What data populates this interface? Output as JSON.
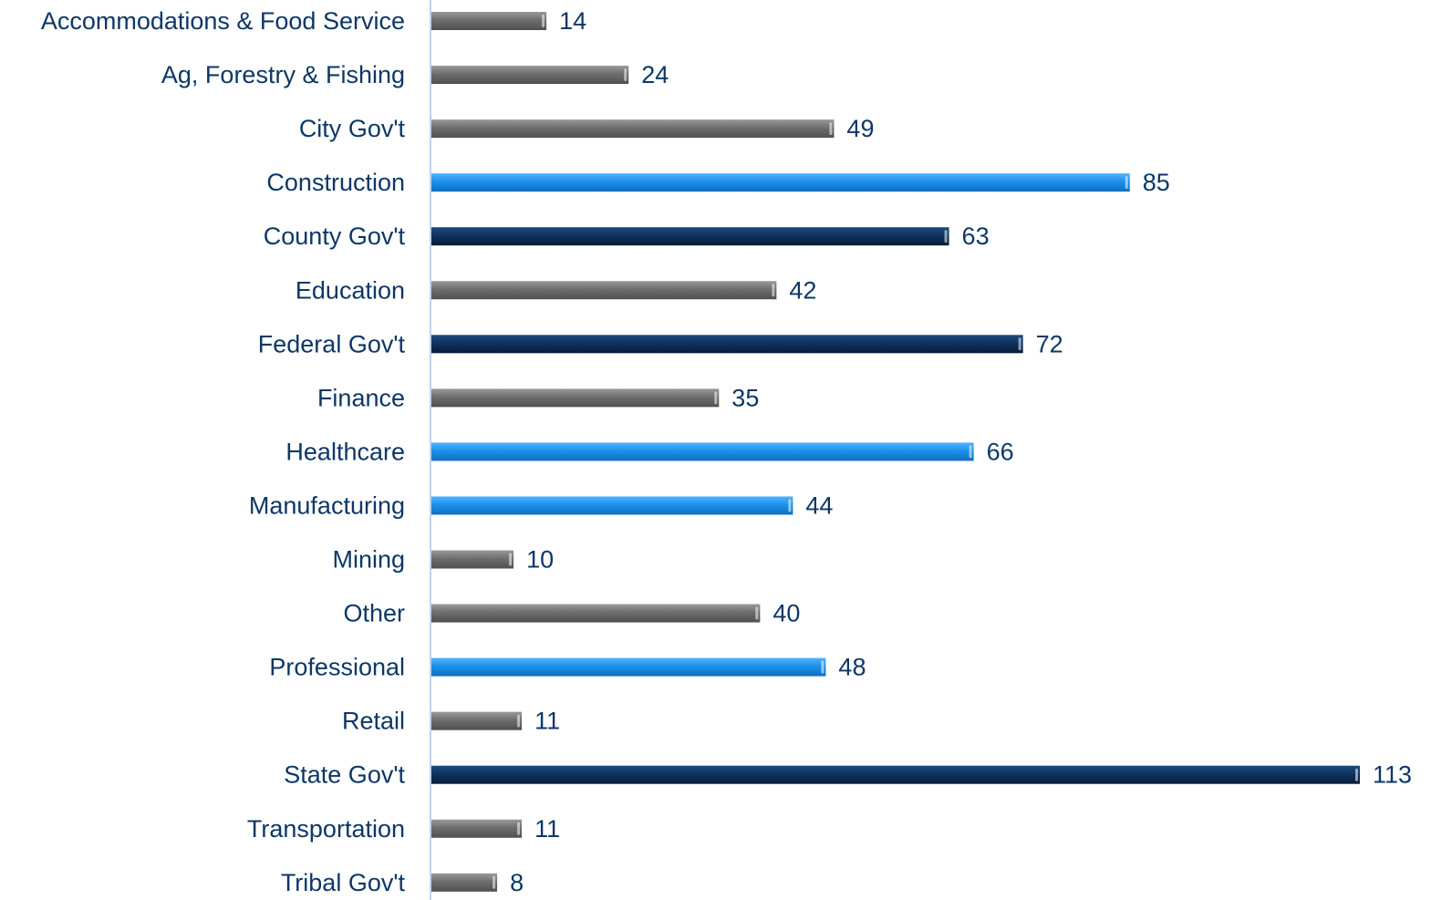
{
  "chart_data": {
    "type": "bar",
    "orientation": "horizontal",
    "categories": [
      "Accommodations & Food Service",
      "Ag, Forestry & Fishing",
      "City Gov't",
      "Construction",
      "County Gov't",
      "Education",
      "Federal Gov't",
      "Finance",
      "Healthcare",
      "Manufacturing",
      "Mining",
      "Other",
      "Professional",
      "Retail",
      "State Gov't",
      "Transportation",
      "Tribal Gov't"
    ],
    "values": [
      14,
      24,
      49,
      85,
      63,
      42,
      72,
      35,
      66,
      44,
      10,
      40,
      48,
      11,
      113,
      11,
      8
    ],
    "value_labels": [
      "14",
      "24",
      "49",
      "85",
      "63",
      "42",
      "72",
      "35",
      "66",
      "44",
      "10",
      "40",
      "48",
      "11",
      "113",
      "11",
      "8"
    ],
    "bar_groups": [
      "gray",
      "gray",
      "gray",
      "blue",
      "navy",
      "gray",
      "navy",
      "gray",
      "blue",
      "blue",
      "gray",
      "gray",
      "blue",
      "gray",
      "navy",
      "gray",
      "gray"
    ],
    "group_colors": {
      "gray": "#808080",
      "blue": "#1e90ea",
      "navy": "#0f3360"
    },
    "xlim": [
      0,
      113
    ],
    "title": "",
    "xlabel": "",
    "ylabel": "",
    "grid": false,
    "data_labels": true,
    "text_color": "#0d3767",
    "axis_color": "#bcd3ee"
  }
}
